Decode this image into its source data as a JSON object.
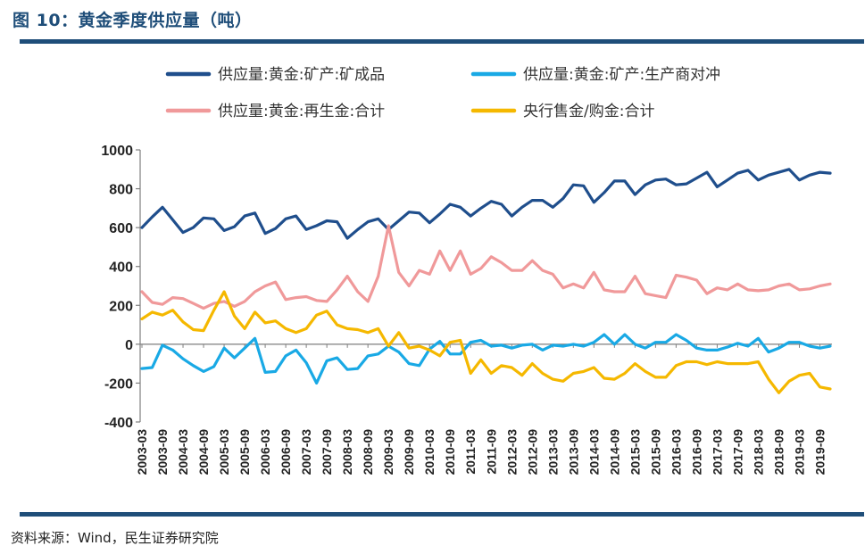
{
  "figure": {
    "title": "图 10：黄金季度供应量（吨）",
    "source": "资料来源：Wind，民生证券研究院"
  },
  "chart_data": {
    "type": "line",
    "title": "图 10：黄金季度供应量（吨）",
    "xlabel": "",
    "ylabel": "",
    "ylim": [
      -400,
      1000
    ],
    "yticks": [
      -400,
      -200,
      0,
      200,
      400,
      600,
      800,
      1000
    ],
    "grid": false,
    "legend_position": "top",
    "x_tick_labels": [
      "2003-03",
      "2003-09",
      "2004-03",
      "2004-09",
      "2005-03",
      "2005-09",
      "2006-03",
      "2006-09",
      "2007-03",
      "2007-09",
      "2008-03",
      "2008-09",
      "2009-03",
      "2009-09",
      "2010-03",
      "2010-09",
      "2011-03",
      "2011-09",
      "2012-03",
      "2012-09",
      "2013-03",
      "2013-09",
      "2014-03",
      "2014-09",
      "2015-03",
      "2015-09",
      "2016-03",
      "2016-09",
      "2017-03",
      "2017-09",
      "2018-03",
      "2018-09",
      "2019-03",
      "2019-09"
    ],
    "x": [
      "2003-03",
      "2003-06",
      "2003-09",
      "2003-12",
      "2004-03",
      "2004-06",
      "2004-09",
      "2004-12",
      "2005-03",
      "2005-06",
      "2005-09",
      "2005-12",
      "2006-03",
      "2006-06",
      "2006-09",
      "2006-12",
      "2007-03",
      "2007-06",
      "2007-09",
      "2007-12",
      "2008-03",
      "2008-06",
      "2008-09",
      "2008-12",
      "2009-03",
      "2009-06",
      "2009-09",
      "2009-12",
      "2010-03",
      "2010-06",
      "2010-09",
      "2010-12",
      "2011-03",
      "2011-06",
      "2011-09",
      "2011-12",
      "2012-03",
      "2012-06",
      "2012-09",
      "2012-12",
      "2013-03",
      "2013-06",
      "2013-09",
      "2013-12",
      "2014-03",
      "2014-06",
      "2014-09",
      "2014-12",
      "2015-03",
      "2015-06",
      "2015-09",
      "2015-12",
      "2016-03",
      "2016-06",
      "2016-09",
      "2016-12",
      "2017-03",
      "2017-06",
      "2017-09",
      "2017-12",
      "2018-03",
      "2018-06",
      "2018-09",
      "2018-12",
      "2019-03",
      "2019-06",
      "2019-09",
      "2019-12"
    ],
    "series": [
      {
        "name": "供应量:黄金:矿产:矿成品",
        "color": "#1f4e8c",
        "values": [
          600,
          655,
          705,
          640,
          575,
          600,
          650,
          645,
          585,
          605,
          660,
          675,
          570,
          595,
          645,
          660,
          590,
          610,
          635,
          630,
          545,
          590,
          630,
          645,
          590,
          635,
          680,
          675,
          625,
          670,
          720,
          705,
          660,
          700,
          735,
          720,
          660,
          705,
          740,
          740,
          705,
          750,
          820,
          815,
          730,
          780,
          840,
          840,
          770,
          820,
          845,
          850,
          820,
          825,
          855,
          885,
          810,
          845,
          880,
          895,
          845,
          870,
          885,
          900,
          845,
          870,
          885,
          880
        ]
      },
      {
        "name": "供应量:黄金:矿产:生产商对冲",
        "color": "#19a9e5",
        "values": [
          -125,
          -120,
          -5,
          -30,
          -75,
          -110,
          -140,
          -115,
          -20,
          -70,
          -20,
          30,
          -145,
          -140,
          -60,
          -30,
          -95,
          -200,
          -85,
          -70,
          -130,
          -125,
          -60,
          -50,
          -10,
          -40,
          -100,
          -110,
          -25,
          15,
          -50,
          -50,
          10,
          20,
          -10,
          -5,
          -20,
          -5,
          0,
          -30,
          -5,
          -10,
          0,
          -10,
          10,
          50,
          0,
          50,
          0,
          -20,
          10,
          10,
          50,
          20,
          -20,
          -30,
          -30,
          -15,
          5,
          -10,
          30,
          -40,
          -20,
          10,
          10,
          -10,
          -20,
          -10
        ]
      },
      {
        "name": "供应量:黄金:再生金:合计",
        "color": "#f0999a",
        "values": [
          270,
          215,
          205,
          240,
          235,
          210,
          185,
          210,
          220,
          195,
          220,
          270,
          300,
          320,
          230,
          240,
          245,
          225,
          220,
          280,
          350,
          270,
          220,
          350,
          610,
          370,
          300,
          380,
          360,
          480,
          380,
          480,
          360,
          390,
          450,
          420,
          380,
          380,
          430,
          380,
          360,
          290,
          310,
          290,
          370,
          280,
          270,
          270,
          350,
          260,
          250,
          240,
          355,
          345,
          330,
          260,
          290,
          280,
          310,
          280,
          275,
          280,
          300,
          310,
          280,
          285,
          300,
          310
        ]
      },
      {
        "name": "央行售金/购金:合计",
        "color": "#f5b800",
        "values": [
          130,
          165,
          150,
          175,
          115,
          75,
          70,
          175,
          270,
          145,
          80,
          165,
          110,
          120,
          80,
          60,
          80,
          150,
          170,
          100,
          80,
          75,
          60,
          80,
          -10,
          60,
          -20,
          -10,
          -30,
          -60,
          10,
          20,
          -150,
          -80,
          -150,
          -110,
          -120,
          -160,
          -100,
          -150,
          -180,
          -190,
          -150,
          -140,
          -120,
          -175,
          -180,
          -150,
          -100,
          -140,
          -170,
          -170,
          -110,
          -90,
          -90,
          -105,
          -90,
          -100,
          -100,
          -100,
          -90,
          -180,
          -250,
          -190,
          -160,
          -150,
          -220,
          -230
        ]
      }
    ]
  }
}
